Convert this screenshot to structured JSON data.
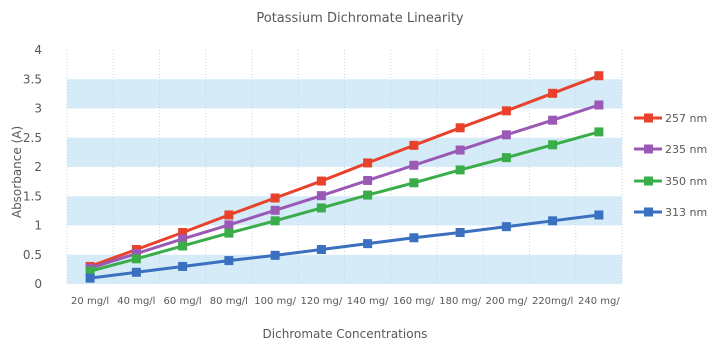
{
  "chart_data": {
    "type": "line",
    "title": "Potassium Dichromate Linearity",
    "xlabel": "Dichromate Concentrations",
    "ylabel": "Absorbance (A)",
    "categories": [
      "20 mg/l",
      "40 mg/l",
      "60 mg/l",
      "80 mg/l",
      "100 mg/",
      "120 mg/",
      "140 mg/",
      "160 mg/",
      "180 mg/",
      "200 mg/",
      "220mg/l",
      "240 mg/"
    ],
    "ylim": [
      0,
      4
    ],
    "yticks": [
      "0",
      "0.5",
      "1",
      "1.5",
      "2",
      "2.5",
      "3",
      "3.5",
      "4"
    ],
    "grid": "horizontal bands, dotted vertical lines",
    "legend_position": "right",
    "series": [
      {
        "name": "257 nm",
        "color": "#e8412c",
        "values": [
          0.3,
          0.59,
          0.88,
          1.18,
          1.47,
          1.76,
          2.07,
          2.37,
          2.67,
          2.96,
          3.26,
          3.56
        ]
      },
      {
        "name": "235 nm",
        "color": "#9b59b6",
        "values": [
          0.27,
          0.52,
          0.77,
          1.01,
          1.26,
          1.51,
          1.77,
          2.03,
          2.29,
          2.55,
          2.8,
          3.06
        ]
      },
      {
        "name": "350 nm",
        "color": "#3aad4a",
        "values": [
          0.22,
          0.43,
          0.65,
          0.87,
          1.08,
          1.3,
          1.52,
          1.73,
          1.95,
          2.16,
          2.38,
          2.6
        ]
      },
      {
        "name": "313 nm",
        "color": "#3b6fc0",
        "values": [
          0.1,
          0.2,
          0.3,
          0.4,
          0.49,
          0.59,
          0.69,
          0.79,
          0.88,
          0.98,
          1.08,
          1.18
        ]
      }
    ]
  }
}
